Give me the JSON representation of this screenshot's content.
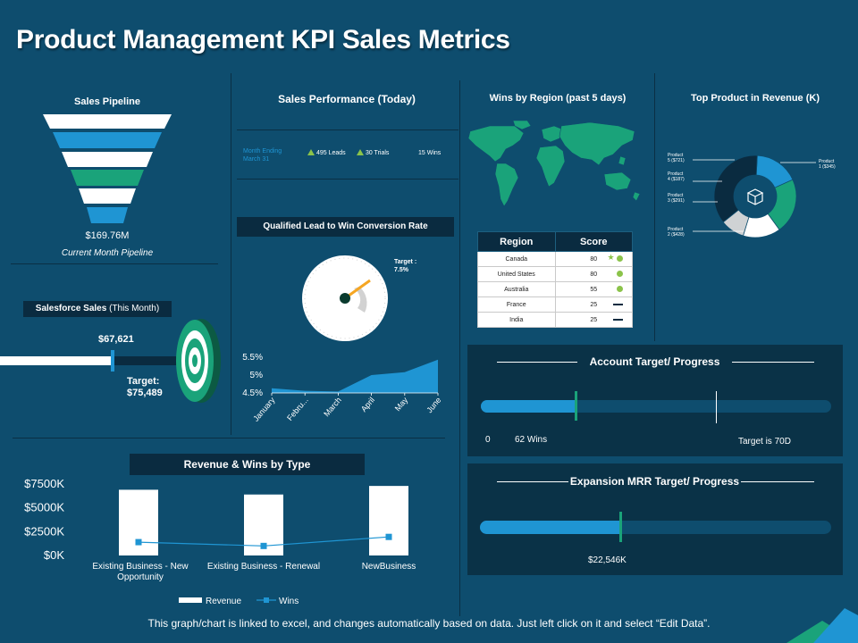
{
  "title": "Product Management KPI Sales Metrics",
  "footer": "This graph/chart is linked to excel, and changes automatically based on data. Just left click on it and select “Edit Data”.",
  "colors": {
    "background": "#0e4d6e",
    "accent_blue": "#1f95d3",
    "accent_green": "#1aa37a",
    "dark_panel": "#0a3247"
  },
  "sales_pipeline": {
    "title": "Sales Pipeline",
    "value": "$169.76M",
    "caption": "Current Month Pipeline"
  },
  "salesforce": {
    "title_bold": "Salesforce Sales",
    "title_rest": " (This Month)",
    "current": "$67,621",
    "target_label": "Target:",
    "target_value": "$75,489",
    "icon": "target-icon"
  },
  "sales_performance": {
    "title": "Sales Performance (Today)",
    "period_line1": "Month Ending",
    "period_line2": "March 31",
    "leads": "495 Leads",
    "trials": "30 Trials",
    "wins": "15 Wins"
  },
  "conversion": {
    "title": "Qualified Lead to Win Conversion Rate",
    "target_line1": "Target :",
    "target_line2": "7.5%"
  },
  "wins_region": {
    "title": "Wins by Region (past 5 days)",
    "headers": [
      "Region",
      "Score"
    ],
    "rows": [
      {
        "region": "Canada",
        "score": "80",
        "marker": "star-dot"
      },
      {
        "region": "United States",
        "score": "80",
        "marker": "dot"
      },
      {
        "region": "Australia",
        "score": "55",
        "marker": "dot"
      },
      {
        "region": "France",
        "score": "25",
        "marker": "dash"
      },
      {
        "region": "India",
        "score": "25",
        "marker": "dash"
      }
    ]
  },
  "top_product": {
    "title": "Top Product in Revenue (K)",
    "labels": [
      {
        "line1": "Product",
        "line2": "1 ($345)"
      },
      {
        "line1": "Product",
        "line2": "2 ($428)"
      },
      {
        "line1": "Product",
        "line2": "3 ($291)"
      },
      {
        "line1": "Product",
        "line2": "4 ($187)"
      },
      {
        "line1": "Product",
        "line2": "5 ($721)"
      }
    ],
    "icon": "box-icon"
  },
  "account_target": {
    "title": "Account Target/ Progress",
    "start": "0",
    "current": "62 Wins",
    "target": "Target is 70D",
    "progress": 0.27,
    "target_mark": 0.67
  },
  "expansion_mrr": {
    "title": "Expansion MRR Target/ Progress",
    "current": "$22,546K",
    "progress": 0.4
  },
  "revenue_wins": {
    "title": "Revenue & Wins by Type",
    "legend": [
      "Revenue",
      "Wins"
    ]
  },
  "chart_data": [
    {
      "type": "area",
      "categories": [
        "January",
        "February",
        "March",
        "April",
        "May",
        "June"
      ],
      "tick_labels": [
        "January",
        "Febru...",
        "March",
        "April",
        "May",
        "June"
      ],
      "values": [
        4.63,
        4.56,
        4.54,
        5.0,
        5.08,
        5.43
      ],
      "y_ticks": [
        "5.5%",
        "5%",
        "4.5%"
      ],
      "ylim": [
        4.5,
        5.5
      ]
    },
    {
      "type": "bar",
      "categories": [
        "Existing Business - New Opportunity",
        "Existing Business - Renewal",
        "NewBusiness"
      ],
      "category_lines": [
        [
          "Existing Business - New",
          "Opportunity"
        ],
        [
          "Existing Business - Renewal"
        ],
        [
          "NewBusiness"
        ]
      ],
      "series": [
        {
          "name": "Revenue",
          "values": [
            6900,
            6400,
            7300
          ]
        },
        {
          "name": "Wins",
          "values": [
            1400,
            1000,
            1950
          ]
        }
      ],
      "y_ticks": [
        "$7500K",
        "$5000K",
        "$2500K",
        "$0K"
      ],
      "ylim": [
        0,
        7500
      ]
    },
    {
      "type": "pie",
      "labels": [
        "Product 1",
        "Product 2",
        "Product 3",
        "Product 4",
        "Product 5"
      ],
      "values": [
        345,
        428,
        291,
        187,
        721
      ]
    }
  ]
}
